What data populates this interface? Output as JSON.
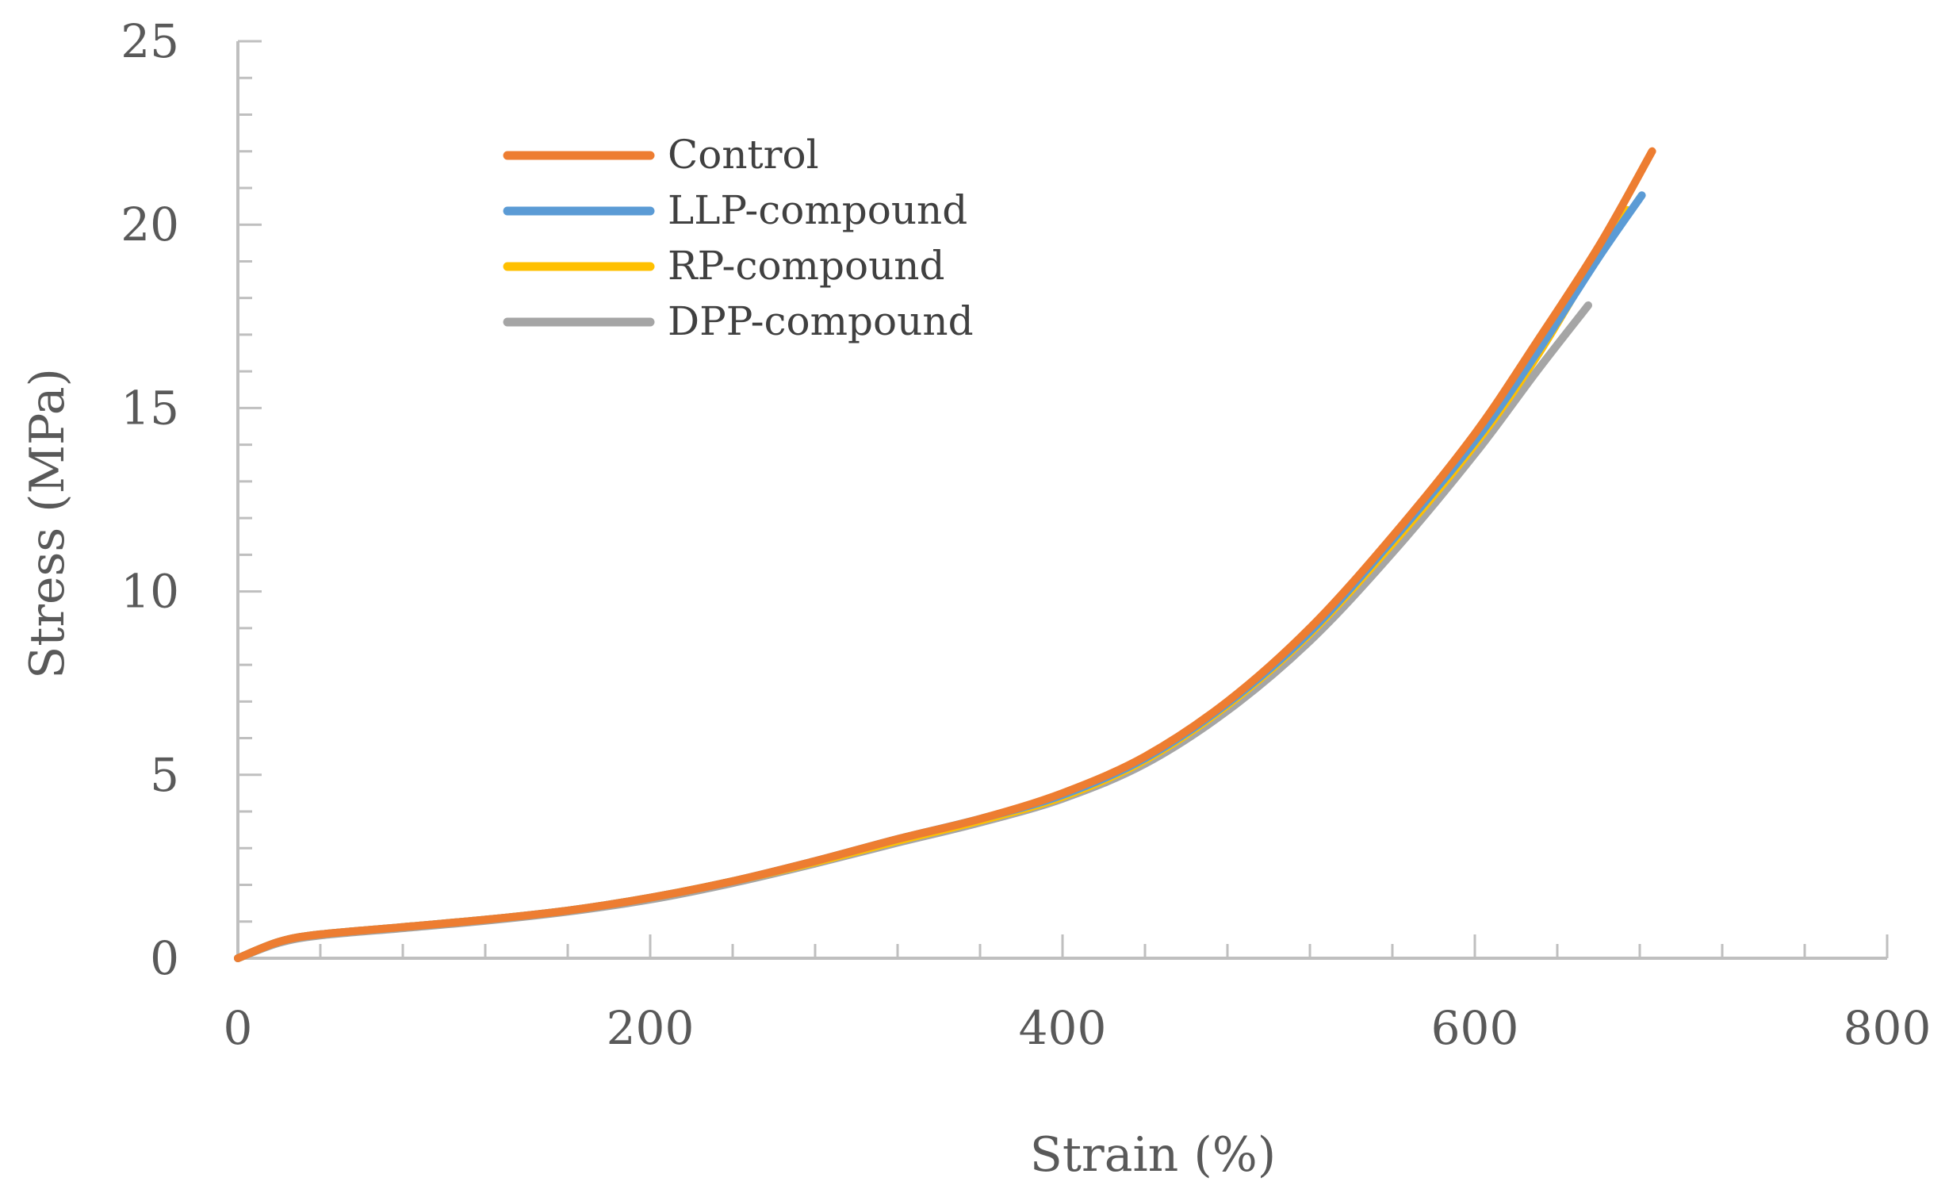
{
  "chart_data": {
    "type": "line",
    "title": "",
    "xlabel": "Strain (%)",
    "ylabel": "Stress (MPa)",
    "xlim": [
      0,
      800
    ],
    "ylim": [
      0,
      25
    ],
    "x_major_ticks": [
      0,
      200,
      400,
      600,
      800
    ],
    "y_major_ticks": [
      0,
      5,
      10,
      15,
      20,
      25
    ],
    "x_minor_step": 40,
    "y_minor_step": 1,
    "grid": false,
    "legend_position": "top-left-inside",
    "series": [
      {
        "name": "Control",
        "color": "#ED7D31",
        "x": [
          0,
          20,
          40,
          80,
          120,
          160,
          200,
          240,
          280,
          320,
          360,
          400,
          440,
          480,
          520,
          560,
          600,
          630,
          660,
          686
        ],
        "y": [
          0,
          0.45,
          0.65,
          0.85,
          1.05,
          1.3,
          1.65,
          2.1,
          2.65,
          3.25,
          3.8,
          4.5,
          5.5,
          7.0,
          9.0,
          11.5,
          14.3,
          16.8,
          19.4,
          22.0
        ]
      },
      {
        "name": "LLP-compound",
        "color": "#5B9BD5",
        "x": [
          0,
          20,
          40,
          80,
          120,
          160,
          200,
          240,
          280,
          320,
          360,
          400,
          440,
          480,
          520,
          560,
          600,
          630,
          660,
          681
        ],
        "y": [
          0,
          0.45,
          0.65,
          0.85,
          1.05,
          1.3,
          1.65,
          2.1,
          2.65,
          3.25,
          3.8,
          4.45,
          5.45,
          6.95,
          8.9,
          11.4,
          14.1,
          16.5,
          19.1,
          20.8
        ]
      },
      {
        "name": "RP-compound",
        "color": "#FFC000",
        "x": [
          0,
          20,
          40,
          80,
          120,
          160,
          200,
          240,
          280,
          320,
          360,
          400,
          440,
          480,
          520,
          560,
          600,
          630,
          660,
          674
        ],
        "y": [
          0,
          0.45,
          0.65,
          0.85,
          1.05,
          1.3,
          1.65,
          2.1,
          2.62,
          3.2,
          3.75,
          4.4,
          5.4,
          6.9,
          8.85,
          11.3,
          14.0,
          16.4,
          19.2,
          20.4
        ]
      },
      {
        "name": "DPP-compound",
        "color": "#A5A5A5",
        "x": [
          0,
          20,
          40,
          80,
          120,
          160,
          200,
          240,
          280,
          320,
          360,
          400,
          440,
          480,
          520,
          560,
          600,
          630,
          655
        ],
        "y": [
          0,
          0.42,
          0.62,
          0.82,
          1.02,
          1.27,
          1.6,
          2.05,
          2.58,
          3.15,
          3.7,
          4.35,
          5.3,
          6.75,
          8.65,
          11.05,
          13.75,
          16.0,
          17.8
        ]
      }
    ]
  }
}
